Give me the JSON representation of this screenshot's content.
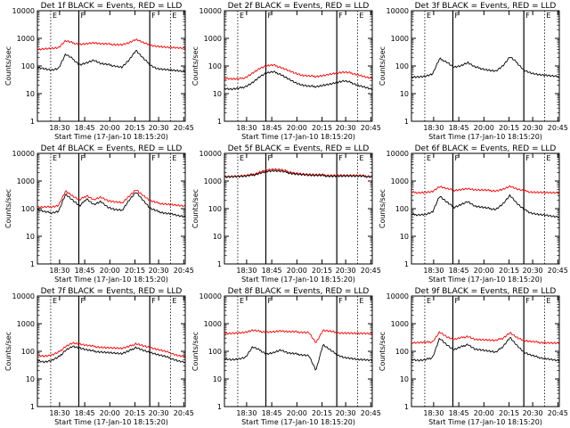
{
  "colors": {
    "events": "#000000",
    "lld": "#ff0000",
    "axis": "#000000"
  },
  "chart_data": [
    {
      "type": "line",
      "title": "Det 1f BLACK = Events, RED = LLD",
      "xlabel": "Start Time (17-Jan-10 18:15:20)",
      "ylabel": "Counts/sec",
      "xticks": [
        "18:30",
        "18:45",
        "20:00",
        "20:15",
        "20:30",
        "20:45"
      ],
      "yticks": [
        "1",
        "10",
        "100",
        "1000",
        "10000"
      ],
      "ylim": [
        1,
        10000
      ],
      "yscale": "log",
      "markers": [
        "E",
        "F",
        "F",
        "E"
      ],
      "series": [
        {
          "key": "events",
          "values": [
            90,
            80,
            70,
            80,
            260,
            180,
            110,
            130,
            160,
            120,
            110,
            100,
            90,
            160,
            360,
            190,
            110,
            80,
            75,
            70,
            65,
            60
          ]
        },
        {
          "key": "lld",
          "values": [
            400,
            420,
            430,
            450,
            800,
            680,
            610,
            640,
            680,
            620,
            610,
            600,
            590,
            680,
            900,
            690,
            560,
            520,
            480,
            460,
            440,
            420
          ]
        }
      ]
    },
    {
      "type": "line",
      "title": "Det 2f BLACK = Events, RED = LLD",
      "xlabel": "Start Time (17-Jan-10 18:15:20)",
      "ylabel": "Counts/sec",
      "xticks": [
        "18:30",
        "18:45",
        "20:00",
        "20:15",
        "20:30",
        "20:45"
      ],
      "yticks": [
        "1",
        "10",
        "100",
        "1000",
        "10000"
      ],
      "ylim": [
        1,
        10000
      ],
      "yscale": "log",
      "markers": [
        "E",
        "F",
        "F",
        "E"
      ],
      "series": [
        {
          "key": "events",
          "values": [
            15,
            14,
            15,
            18,
            25,
            40,
            55,
            60,
            50,
            35,
            25,
            20,
            18,
            18,
            20,
            22,
            25,
            28,
            25,
            20,
            17,
            14
          ]
        },
        {
          "key": "lld",
          "values": [
            35,
            33,
            33,
            38,
            55,
            80,
            100,
            105,
            90,
            70,
            55,
            45,
            42,
            42,
            45,
            50,
            55,
            58,
            55,
            48,
            40,
            35
          ]
        }
      ]
    },
    {
      "type": "line",
      "title": "Det 3f BLACK = Events, RED = LLD",
      "xlabel": "Start Time (17-Jan-10 18:15:20)",
      "ylabel": "Counts/sec",
      "xticks": [
        "18:30",
        "18:45",
        "20:00",
        "20:15",
        "20:30",
        "20:45"
      ],
      "yticks": [
        "1",
        "10",
        "100",
        "1000",
        "10000"
      ],
      "ylim": [
        1,
        10000
      ],
      "yscale": "log",
      "markers": [
        "E",
        "F",
        "F",
        "E"
      ],
      "series": [
        {
          "key": "events",
          "values": [
            40,
            40,
            42,
            50,
            180,
            140,
            90,
            100,
            130,
            90,
            80,
            70,
            65,
            100,
            210,
            130,
            70,
            55,
            48,
            45,
            42,
            40
          ]
        }
      ]
    },
    {
      "type": "line",
      "title": "Det 4f BLACK = Events, RED = LLD",
      "xlabel": "Start Time (17-Jan-10 18:15:20)",
      "ylabel": "Counts/sec",
      "xticks": [
        "18:30",
        "18:45",
        "20:00",
        "20:15",
        "20:30",
        "20:45"
      ],
      "yticks": [
        "1",
        "10",
        "100",
        "1000",
        "10000"
      ],
      "ylim": [
        1,
        10000
      ],
      "yscale": "log",
      "markers": [
        "E",
        "F",
        "F",
        "E"
      ],
      "series": [
        {
          "key": "events",
          "values": [
            90,
            75,
            70,
            80,
            330,
            200,
            120,
            230,
            140,
            180,
            110,
            90,
            85,
            200,
            400,
            200,
            100,
            80,
            70,
            65,
            55,
            50
          ]
        },
        {
          "key": "lld",
          "values": [
            110,
            110,
            115,
            130,
            430,
            280,
            200,
            300,
            210,
            260,
            190,
            170,
            160,
            280,
            480,
            300,
            190,
            160,
            150,
            140,
            130,
            120
          ]
        }
      ]
    },
    {
      "type": "line",
      "title": "Det 5f BLACK = Events, RED = LLD",
      "xlabel": "Start Time (17-Jan-10 18:15:20)",
      "ylabel": "Counts/sec",
      "xticks": [
        "18:30",
        "18:45",
        "20:00",
        "20:15",
        "20:30",
        "20:45"
      ],
      "yticks": [
        "1",
        "10",
        "100",
        "1000",
        "10000"
      ],
      "ylim": [
        1,
        10000
      ],
      "yscale": "log",
      "markers": [
        "E",
        "F",
        "F",
        "E"
      ],
      "series": [
        {
          "key": "events",
          "values": [
            1400,
            1400,
            1420,
            1450,
            1600,
            1900,
            2200,
            2300,
            2200,
            2000,
            1800,
            1700,
            1600,
            1550,
            1550,
            1500,
            1500,
            1500,
            1480,
            1460,
            1440,
            1420
          ]
        },
        {
          "key": "lld",
          "values": [
            1450,
            1450,
            1480,
            1520,
            1700,
            2100,
            2500,
            2600,
            2500,
            2200,
            1950,
            1800,
            1700,
            1650,
            1650,
            1600,
            1600,
            1580,
            1560,
            1540,
            1500,
            1480
          ]
        }
      ]
    },
    {
      "type": "line",
      "title": "Det 6f BLACK = Events, RED = LLD",
      "xlabel": "Start Time (17-Jan-10 18:15:20)",
      "ylabel": "Counts/sec",
      "xticks": [
        "18:30",
        "18:45",
        "20:00",
        "20:15",
        "20:30",
        "20:45"
      ],
      "yticks": [
        "1",
        "10",
        "100",
        "1000",
        "10000"
      ],
      "ylim": [
        1,
        10000
      ],
      "yscale": "log",
      "markers": [
        "E",
        "F",
        "F",
        "E"
      ],
      "series": [
        {
          "key": "events",
          "values": [
            60,
            60,
            62,
            75,
            280,
            170,
            110,
            140,
            180,
            120,
            110,
            100,
            95,
            150,
            300,
            150,
            90,
            70,
            62,
            58,
            52,
            48
          ]
        },
        {
          "key": "lld",
          "values": [
            380,
            380,
            390,
            410,
            620,
            520,
            460,
            490,
            530,
            470,
            460,
            450,
            440,
            500,
            640,
            500,
            430,
            400,
            390,
            380,
            370,
            360
          ]
        }
      ]
    },
    {
      "type": "line",
      "title": "Det 7f BLACK = Events, RED = LLD",
      "xlabel": "Start Time (17-Jan-10 18:15:20)",
      "ylabel": "Counts/sec",
      "xticks": [
        "18:30",
        "18:45",
        "20:00",
        "20:15",
        "20:30",
        "20:45"
      ],
      "yticks": [
        "1",
        "10",
        "100",
        "1000",
        "10000"
      ],
      "ylim": [
        1,
        10000
      ],
      "yscale": "log",
      "markers": [
        "E",
        "F",
        "F",
        "E"
      ],
      "series": [
        {
          "key": "events",
          "values": [
            45,
            40,
            45,
            60,
            110,
            150,
            130,
            110,
            100,
            95,
            90,
            85,
            80,
            100,
            140,
            110,
            90,
            75,
            65,
            55,
            45,
            40
          ]
        },
        {
          "key": "lld",
          "values": [
            70,
            65,
            70,
            90,
            150,
            200,
            180,
            160,
            150,
            140,
            135,
            130,
            125,
            145,
            190,
            160,
            135,
            115,
            100,
            85,
            70,
            65
          ]
        }
      ]
    },
    {
      "type": "line",
      "title": "Det 8f BLACK = Events, RED = LLD",
      "xlabel": "Start Time (17-Jan-10 18:15:20)",
      "ylabel": "Counts/sec",
      "xticks": [
        "18:30",
        "18:45",
        "20:00",
        "20:15",
        "20:30",
        "20:45"
      ],
      "yticks": [
        "1",
        "10",
        "100",
        "1000",
        "10000"
      ],
      "ylim": [
        1,
        10000
      ],
      "yscale": "log",
      "markers": [
        "E",
        "F",
        "F",
        "E"
      ],
      "series": [
        {
          "key": "events",
          "values": [
            55,
            50,
            52,
            60,
            140,
            110,
            80,
            90,
            110,
            85,
            80,
            75,
            70,
            20,
            170,
            110,
            75,
            60,
            55,
            50,
            48,
            45
          ]
        },
        {
          "key": "lld",
          "values": [
            450,
            450,
            460,
            480,
            560,
            520,
            500,
            510,
            540,
            500,
            500,
            490,
            480,
            200,
            560,
            520,
            470,
            460,
            450,
            440,
            430,
            420
          ]
        }
      ]
    },
    {
      "type": "line",
      "title": "Det 9f BLACK = Events, RED = LLD",
      "xlabel": "Start Time (17-Jan-10 18:15:20)",
      "ylabel": "Counts/sec",
      "xticks": [
        "18:30",
        "18:45",
        "20:00",
        "20:15",
        "20:30",
        "20:45"
      ],
      "yticks": [
        "1",
        "10",
        "100",
        "1000",
        "10000"
      ],
      "ylim": [
        1,
        10000
      ],
      "yscale": "log",
      "markers": [
        "E",
        "F",
        "F",
        "E"
      ],
      "series": [
        {
          "key": "events",
          "values": [
            50,
            45,
            48,
            60,
            300,
            170,
            110,
            140,
            180,
            120,
            110,
            100,
            90,
            150,
            320,
            160,
            90,
            70,
            60,
            55,
            50,
            45
          ]
        },
        {
          "key": "lld",
          "values": [
            200,
            200,
            205,
            220,
            500,
            330,
            260,
            300,
            350,
            270,
            260,
            250,
            240,
            300,
            480,
            310,
            240,
            220,
            210,
            205,
            200,
            195
          ]
        }
      ]
    }
  ]
}
